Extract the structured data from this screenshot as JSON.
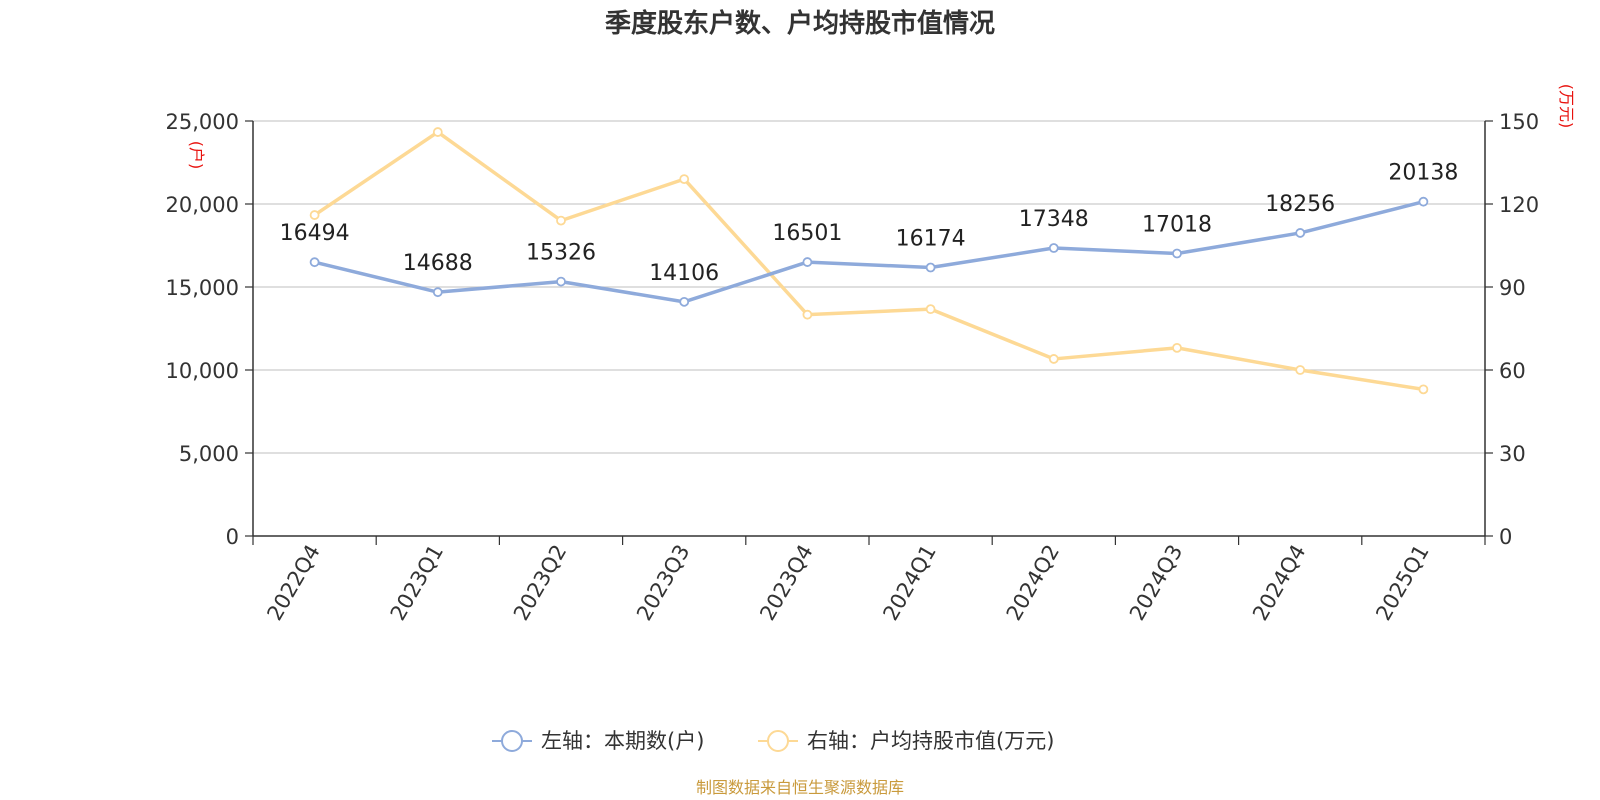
{
  "chart_data": {
    "type": "line",
    "title": "季度股东户数、户均持股市值情况",
    "categories": [
      "2022Q4",
      "2023Q1",
      "2023Q2",
      "2023Q3",
      "2023Q4",
      "2024Q1",
      "2024Q2",
      "2024Q3",
      "2024Q4",
      "2025Q1"
    ],
    "left_axis": {
      "unit_label": "(户)",
      "ylim": [
        0,
        25000
      ],
      "ticks": [
        0,
        5000,
        10000,
        15000,
        20000,
        25000
      ],
      "tick_labels": [
        "0",
        "5,000",
        "10,000",
        "15,000",
        "20,000",
        "25,000"
      ]
    },
    "right_axis": {
      "unit_label": "(万元)",
      "ylim": [
        0,
        150
      ],
      "ticks": [
        0,
        30,
        60,
        90,
        120,
        150
      ],
      "tick_labels": [
        "0",
        "30",
        "60",
        "90",
        "120",
        "150"
      ]
    },
    "series": [
      {
        "name": "左轴：本期数(户)",
        "axis": "left",
        "color": "#8eaadb",
        "values": [
          16494,
          14688,
          15326,
          14106,
          16501,
          16174,
          17348,
          17018,
          18256,
          20138
        ],
        "data_labels": [
          "16494",
          "14688",
          "15326",
          "14106",
          "16501",
          "16174",
          "17348",
          "17018",
          "18256",
          "20138"
        ]
      },
      {
        "name": "右轴：户均持股市值(万元)",
        "axis": "right",
        "color": "#fdd995",
        "values": [
          116,
          146,
          114,
          129,
          80,
          82,
          64,
          68,
          60,
          53
        ]
      }
    ],
    "grid": true,
    "legend_position": "bottom-center",
    "unit_label_color": "#e8120e"
  },
  "source": {
    "text": "制图数据来自恒生聚源数据库",
    "color": "#c99a3c"
  }
}
